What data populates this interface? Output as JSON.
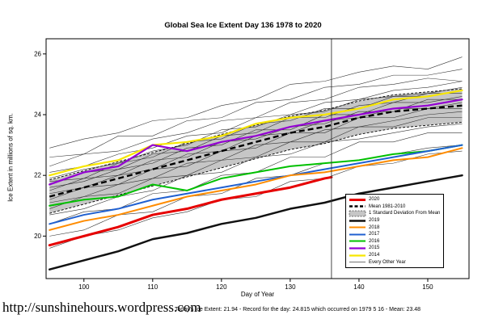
{
  "title": "Global Sea Ice Extent Day 136 1978 to 2020",
  "footer": {
    "url": "http://sunshinehours.wordpress.com",
    "status": "Today's Ice Extent: 21.94  - Record for the day: 24.815 which occurred on 1979 5 16  - Mean: 23.48"
  },
  "chart_data": {
    "type": "line",
    "title": "Global Sea Ice Extent Day 136 1978 to 2020",
    "xlabel": "Day of Year",
    "ylabel": "Ice Extent in millions of sq. km.",
    "xlim": [
      94.5,
      156
    ],
    "ylim": [
      18.6,
      26.5
    ],
    "xticks": [
      100,
      110,
      120,
      130,
      140,
      150
    ],
    "yticks": [
      20,
      22,
      24,
      26
    ],
    "vline_day": 136,
    "x": [
      95,
      100,
      105,
      110,
      115,
      120,
      125,
      130,
      135,
      140,
      145,
      150,
      155
    ],
    "band": {
      "label": "1 Standard Deviation From Mean",
      "sd": 0.55,
      "fill": "#c6c6c6",
      "edge_color": "#000000"
    },
    "series": [
      {
        "name": "2014",
        "color": "#f7e600",
        "width": 2.2,
        "values": [
          22.0,
          22.3,
          22.5,
          23.0,
          23.1,
          23.3,
          23.7,
          23.9,
          24.0,
          24.2,
          24.5,
          24.6,
          24.8
        ]
      },
      {
        "name": "2015",
        "color": "#9400d3",
        "width": 2.2,
        "values": [
          21.7,
          22.1,
          22.3,
          23.0,
          22.8,
          23.1,
          23.3,
          23.6,
          23.8,
          24.0,
          24.2,
          24.3,
          24.5
        ]
      },
      {
        "name": "2016",
        "color": "#00c000",
        "width": 2.0,
        "values": [
          21.0,
          21.2,
          21.3,
          21.7,
          21.5,
          21.9,
          22.1,
          22.3,
          22.4,
          22.5,
          22.7,
          22.8,
          23.0
        ]
      },
      {
        "name": "2017",
        "color": "#2060d0",
        "width": 2.0,
        "values": [
          20.4,
          20.7,
          20.9,
          21.2,
          21.4,
          21.6,
          21.8,
          22.0,
          22.2,
          22.4,
          22.6,
          22.8,
          23.0
        ]
      },
      {
        "name": "2018",
        "color": "#ff8c00",
        "width": 2.0,
        "values": [
          20.2,
          20.5,
          20.7,
          21.0,
          21.3,
          21.5,
          21.7,
          22.0,
          22.1,
          22.3,
          22.5,
          22.6,
          22.9
        ]
      },
      {
        "name": "2019",
        "color": "#111111",
        "width": 2.5,
        "values": [
          18.9,
          19.2,
          19.5,
          19.9,
          20.1,
          20.4,
          20.6,
          20.9,
          21.1,
          21.4,
          21.6,
          21.8,
          22.0
        ]
      },
      {
        "name": "2020",
        "color": "#e60000",
        "width": 3.0,
        "x": [
          95,
          100,
          105,
          110,
          115,
          120,
          125,
          130,
          135,
          136
        ],
        "values": [
          19.7,
          20.0,
          20.3,
          20.7,
          20.9,
          21.2,
          21.4,
          21.6,
          21.9,
          21.94
        ]
      },
      {
        "name": "Mean 1981-2010",
        "color": "#000000",
        "width": 2.4,
        "dash": "7 4",
        "values": [
          21.3,
          21.6,
          21.9,
          22.2,
          22.5,
          22.8,
          23.1,
          23.4,
          23.6,
          23.9,
          24.1,
          24.2,
          24.3
        ]
      }
    ],
    "every_other_year": {
      "label": "Every Other Year",
      "color": "#333333",
      "width": 0.6,
      "series": [
        [
          22.9,
          23.2,
          23.4,
          23.8,
          23.9,
          24.3,
          24.5,
          25.0,
          25.1,
          25.4,
          25.6,
          25.5,
          25.9
        ],
        [
          22.6,
          22.7,
          23.3,
          23.3,
          23.8,
          23.9,
          24.4,
          24.5,
          24.9,
          25.0,
          25.3,
          25.3,
          25.5
        ],
        [
          22.3,
          22.7,
          22.8,
          23.2,
          23.4,
          23.8,
          23.9,
          24.4,
          24.5,
          24.9,
          25.0,
          25.2,
          25.1
        ],
        [
          22.1,
          22.3,
          22.7,
          22.9,
          23.3,
          23.4,
          23.9,
          24.0,
          24.4,
          24.5,
          24.8,
          24.9,
          25.1
        ],
        [
          21.9,
          22.2,
          22.4,
          22.8,
          23.0,
          23.5,
          23.6,
          24.0,
          24.1,
          24.5,
          24.6,
          24.7,
          24.9
        ],
        [
          21.8,
          21.9,
          22.4,
          22.6,
          23.1,
          23.2,
          23.7,
          23.8,
          24.2,
          24.2,
          24.6,
          24.6,
          24.8
        ],
        [
          21.7,
          22.1,
          22.2,
          22.7,
          22.8,
          23.3,
          23.4,
          23.9,
          23.9,
          24.3,
          24.4,
          24.7,
          24.7
        ],
        [
          21.6,
          21.8,
          22.2,
          22.4,
          22.9,
          23.0,
          23.5,
          23.5,
          24.0,
          24.0,
          24.4,
          24.4,
          24.6
        ],
        [
          21.5,
          21.9,
          22.0,
          22.5,
          22.6,
          23.1,
          23.2,
          23.6,
          23.7,
          24.1,
          24.1,
          24.5,
          24.5
        ],
        [
          21.4,
          21.6,
          22.0,
          22.2,
          22.7,
          22.8,
          23.3,
          23.4,
          23.8,
          23.9,
          24.2,
          24.2,
          24.4
        ],
        [
          21.2,
          21.6,
          21.7,
          22.2,
          22.3,
          22.8,
          22.9,
          23.4,
          23.4,
          23.9,
          23.9,
          24.2,
          24.2
        ],
        [
          21.1,
          21.3,
          21.7,
          21.9,
          22.4,
          22.5,
          23.0,
          23.1,
          23.5,
          23.6,
          23.8,
          24.0,
          24.1
        ],
        [
          20.9,
          21.3,
          21.4,
          21.9,
          22.0,
          22.5,
          22.6,
          23.1,
          23.1,
          23.6,
          23.6,
          23.9,
          23.9
        ],
        [
          20.7,
          20.9,
          21.3,
          21.5,
          22.0,
          22.1,
          22.6,
          22.7,
          23.1,
          23.2,
          23.4,
          23.6,
          23.7
        ],
        [
          20.4,
          20.8,
          20.9,
          21.4,
          21.5,
          22.0,
          22.1,
          22.6,
          22.6,
          23.1,
          23.1,
          23.4,
          23.4
        ],
        [
          20.0,
          20.2,
          20.7,
          20.8,
          21.3,
          21.4,
          21.9,
          22.0,
          22.4,
          22.5,
          22.7,
          22.9,
          23.0
        ],
        [
          19.6,
          20.0,
          20.2,
          20.6,
          20.8,
          21.2,
          21.3,
          21.8,
          21.9,
          22.3,
          22.4,
          22.7,
          22.8
        ]
      ]
    },
    "legend": [
      {
        "label": "2020",
        "type": "line",
        "color": "#e60000",
        "width": 3.0
      },
      {
        "label": "Mean 1981-2010",
        "type": "dashed",
        "color": "#000000",
        "width": 2.4
      },
      {
        "label": "1 Standard Deviation From Mean",
        "type": "band",
        "color": "#c6c6c6"
      },
      {
        "label": "2019",
        "type": "line",
        "color": "#111111",
        "width": 2.5
      },
      {
        "label": "2018",
        "type": "line",
        "color": "#ff8c00",
        "width": 2.0
      },
      {
        "label": "2017",
        "type": "line",
        "color": "#2060d0",
        "width": 2.0
      },
      {
        "label": "2016",
        "type": "line",
        "color": "#00c000",
        "width": 2.0
      },
      {
        "label": "2015",
        "type": "line",
        "color": "#9400d3",
        "width": 2.2
      },
      {
        "label": "2014",
        "type": "line",
        "color": "#f7e600",
        "width": 2.2
      },
      {
        "label": "Every Other Year",
        "type": "line",
        "color": "#444444",
        "width": 0.8
      }
    ],
    "legend_position": "right-middle",
    "grid": false
  }
}
